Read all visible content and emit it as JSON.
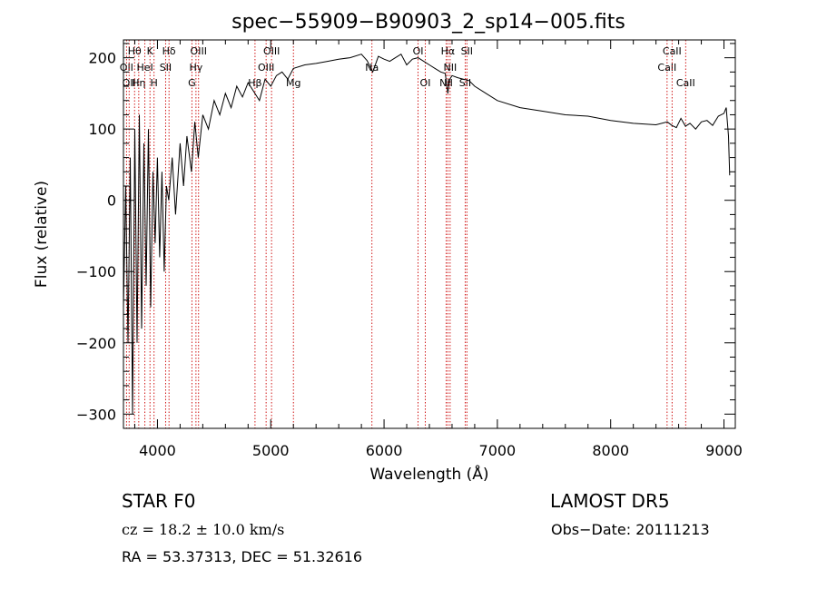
{
  "chart_data": {
    "type": "line",
    "title": "spec−55909−B90903_2_sp14−005.fits",
    "xlabel": "Wavelength (Å)",
    "ylabel": "Flux (relative)",
    "xlim": [
      3700,
      9100
    ],
    "ylim": [
      -320,
      225
    ],
    "x_ticks": [
      4000,
      5000,
      6000,
      7000,
      8000,
      9000
    ],
    "x_tick_labels": [
      "4000",
      "5000",
      "6000",
      "7000",
      "8000",
      "9000"
    ],
    "y_ticks": [
      -300,
      -200,
      -100,
      0,
      100,
      200
    ],
    "y_tick_labels": [
      "−300",
      "−200",
      "−100",
      "0",
      "100",
      "200"
    ],
    "grid": false,
    "line_color": "#000000",
    "marker_line_color": "#cc0000",
    "series": [
      {
        "x": [
          3700,
          3720,
          3740,
          3760,
          3780,
          3800,
          3820,
          3840,
          3860,
          3880,
          3900,
          3920,
          3940,
          3960,
          3980,
          4000,
          4020,
          4040,
          4060,
          4080,
          4100,
          4130,
          4160,
          4200,
          4230,
          4260,
          4300,
          4330,
          4360,
          4400,
          4450,
          4500,
          4550,
          4600,
          4650,
          4700,
          4750,
          4800,
          4860,
          4900,
          4950,
          5000,
          5050,
          5100,
          5150,
          5200,
          5300,
          5400,
          5500,
          5600,
          5700,
          5800,
          5850,
          5900,
          5950,
          6000,
          6050,
          6100,
          6150,
          6200,
          6250,
          6300,
          6350,
          6400,
          6450,
          6500,
          6540,
          6563,
          6580,
          6600,
          6650,
          6700,
          6750,
          6800,
          6900,
          7000,
          7200,
          7400,
          7600,
          7800,
          8000,
          8200,
          8400,
          8500,
          8540,
          8580,
          8620,
          8660,
          8700,
          8750,
          8800,
          8850,
          8900,
          8950,
          9000,
          9020,
          9040,
          9050
        ],
        "y": [
          -150,
          20,
          -200,
          60,
          -300,
          100,
          -200,
          120,
          -180,
          80,
          -120,
          100,
          -150,
          40,
          -60,
          60,
          -80,
          40,
          -100,
          20,
          0,
          60,
          -20,
          80,
          20,
          90,
          40,
          110,
          60,
          120,
          100,
          140,
          120,
          150,
          130,
          160,
          145,
          165,
          150,
          140,
          170,
          160,
          175,
          180,
          170,
          185,
          190,
          192,
          195,
          198,
          200,
          205,
          196,
          180,
          202,
          198,
          195,
          200,
          205,
          190,
          198,
          200,
          195,
          190,
          185,
          180,
          178,
          150,
          170,
          175,
          172,
          170,
          168,
          160,
          150,
          140,
          130,
          125,
          120,
          118,
          112,
          108,
          106,
          110,
          105,
          102,
          115,
          104,
          108,
          100,
          110,
          112,
          105,
          118,
          122,
          130,
          90,
          35
        ]
      }
    ],
    "line_markers": [
      {
        "x": 3727,
        "label": "OII",
        "row": 2
      },
      {
        "x": 3750,
        "label": "OII",
        "row": 3
      },
      {
        "x": 3798,
        "label": "Hθ",
        "row": 1
      },
      {
        "x": 3835,
        "label": "Hη",
        "row": 3
      },
      {
        "x": 3889,
        "label": "HeI",
        "row": 2
      },
      {
        "x": 3934,
        "label": "K",
        "row": 1
      },
      {
        "x": 3970,
        "label": "H",
        "row": 3
      },
      {
        "x": 4072,
        "label": "SII",
        "row": 2
      },
      {
        "x": 4102,
        "label": "Hδ",
        "row": 1
      },
      {
        "x": 4304,
        "label": "G",
        "row": 3
      },
      {
        "x": 4340,
        "label": "Hγ",
        "row": 2
      },
      {
        "x": 4363,
        "label": "OIII",
        "row": 1
      },
      {
        "x": 4861,
        "label": "Hβ",
        "row": 3
      },
      {
        "x": 4959,
        "label": "OIII",
        "row": 2
      },
      {
        "x": 5007,
        "label": "OIII",
        "row": 1
      },
      {
        "x": 5200,
        "label": "Mg",
        "row": 3
      },
      {
        "x": 5893,
        "label": "Na",
        "row": 2
      },
      {
        "x": 6300,
        "label": "OI",
        "row": 1
      },
      {
        "x": 6364,
        "label": "OI",
        "row": 3
      },
      {
        "x": 6548,
        "label": "NII",
        "row": 3
      },
      {
        "x": 6563,
        "label": "Hα",
        "row": 1
      },
      {
        "x": 6583,
        "label": "NII",
        "row": 2
      },
      {
        "x": 6716,
        "label": "SII",
        "row": 3
      },
      {
        "x": 6731,
        "label": "SII",
        "row": 1
      },
      {
        "x": 8498,
        "label": "CaII",
        "row": 2
      },
      {
        "x": 8542,
        "label": "CaII",
        "row": 1
      },
      {
        "x": 8662,
        "label": "CaII",
        "row": 3
      }
    ]
  },
  "info": {
    "class_line": "STAR    F0",
    "survey": "LAMOST  DR5",
    "cz": "cz = 18.2 ± 10.0 km/s",
    "obs_date": "Obs−Date: 20111213",
    "radec": "RA =  53.37313, DEC =  51.32616"
  }
}
